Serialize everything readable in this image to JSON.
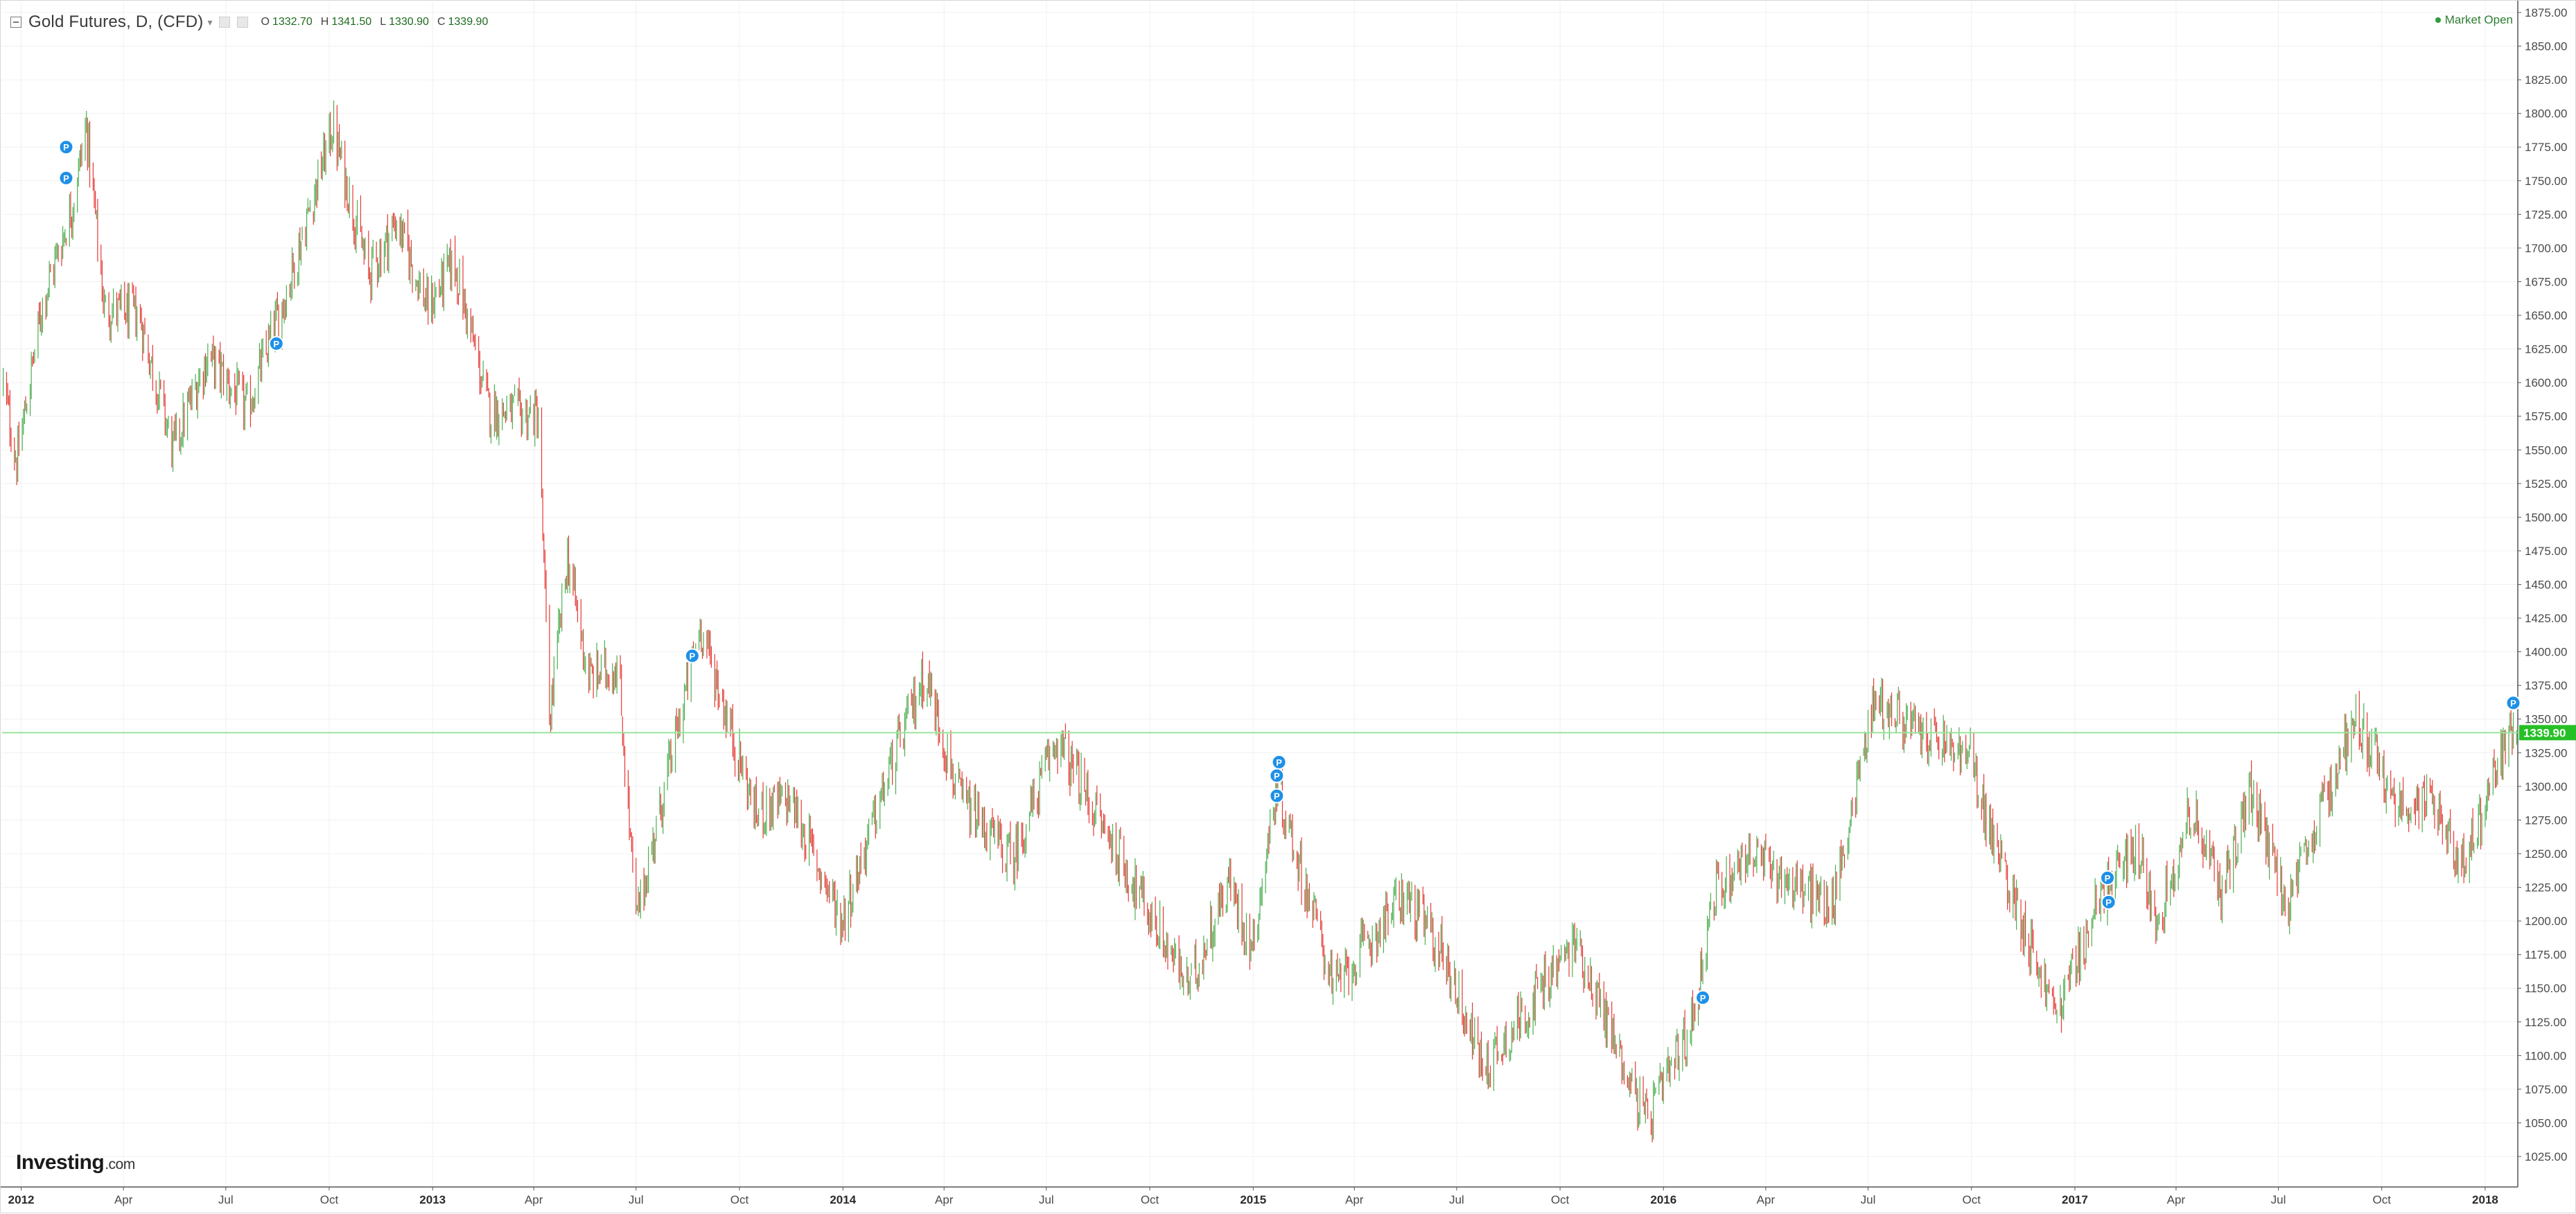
{
  "header": {
    "title": "Gold Futures, D, (CFD)",
    "caret": "▾",
    "ohlc": [
      {
        "key": "O",
        "value": "1332.70"
      },
      {
        "key": "H",
        "value": "1341.50"
      },
      {
        "key": "L",
        "value": "1330.90"
      },
      {
        "key": "C",
        "value": "1339.90"
      }
    ]
  },
  "market_status": "Market Open",
  "logo": {
    "brand": "Investing",
    "domain": ".com"
  },
  "last_price_label": "1339.90",
  "colors": {
    "up": "#4caf50",
    "down": "#e53935",
    "last_price_line": "#9be39b",
    "last_price_badge": "#26c026",
    "marker": "#1e90e8"
  },
  "marker_label": "P",
  "chart_data": {
    "type": "candlestick",
    "title": "Gold Futures, D, (CFD)",
    "xlabel": "",
    "ylabel": "",
    "ylim": [
      1000,
      1875
    ],
    "y_ticks": [
      1025,
      1050,
      1075,
      1100,
      1125,
      1150,
      1175,
      1200,
      1225,
      1250,
      1275,
      1300,
      1325,
      1350,
      1375,
      1400,
      1425,
      1450,
      1475,
      1500,
      1525,
      1550,
      1575,
      1600,
      1625,
      1650,
      1675,
      1700,
      1725,
      1750,
      1775,
      1800,
      1825,
      1850,
      1875
    ],
    "y_tick_labels": [
      "1025.00",
      "1050.00",
      "1075.00",
      "1100.00",
      "1125.00",
      "1150.00",
      "1175.00",
      "1200.00",
      "1225.00",
      "1250.00",
      "1275.00",
      "1300.00",
      "1325.00",
      "1350.00",
      "1375.00",
      "1400.00",
      "1425.00",
      "1450.00",
      "1475.00",
      "1500.00",
      "1525.00",
      "1550.00",
      "1575.00",
      "1600.00",
      "1625.00",
      "1650.00",
      "1675.00",
      "1700.00",
      "1725.00",
      "1750.00",
      "1775.00",
      "1800.00",
      "1825.00",
      "1850.00",
      "1875.00"
    ],
    "x_range": [
      "2011-12-15",
      "2018-01-30"
    ],
    "x_ticks": [
      {
        "date": "2012-01-01",
        "label": "2012",
        "year": true
      },
      {
        "date": "2012-04-01",
        "label": "Apr",
        "year": false
      },
      {
        "date": "2012-07-01",
        "label": "Jul",
        "year": false
      },
      {
        "date": "2012-10-01",
        "label": "Oct",
        "year": false
      },
      {
        "date": "2013-01-01",
        "label": "2013",
        "year": true
      },
      {
        "date": "2013-04-01",
        "label": "Apr",
        "year": false
      },
      {
        "date": "2013-07-01",
        "label": "Jul",
        "year": false
      },
      {
        "date": "2013-10-01",
        "label": "Oct",
        "year": false
      },
      {
        "date": "2014-01-01",
        "label": "2014",
        "year": true
      },
      {
        "date": "2014-04-01",
        "label": "Apr",
        "year": false
      },
      {
        "date": "2014-07-01",
        "label": "Jul",
        "year": false
      },
      {
        "date": "2014-10-01",
        "label": "Oct",
        "year": false
      },
      {
        "date": "2015-01-01",
        "label": "2015",
        "year": true
      },
      {
        "date": "2015-04-01",
        "label": "Apr",
        "year": false
      },
      {
        "date": "2015-07-01",
        "label": "Jul",
        "year": false
      },
      {
        "date": "2015-10-01",
        "label": "Oct",
        "year": false
      },
      {
        "date": "2016-01-01",
        "label": "2016",
        "year": true
      },
      {
        "date": "2016-04-01",
        "label": "Apr",
        "year": false
      },
      {
        "date": "2016-07-01",
        "label": "Jul",
        "year": false
      },
      {
        "date": "2016-10-01",
        "label": "Oct",
        "year": false
      },
      {
        "date": "2017-01-01",
        "label": "2017",
        "year": true
      },
      {
        "date": "2017-04-01",
        "label": "Apr",
        "year": false
      },
      {
        "date": "2017-07-01",
        "label": "Jul",
        "year": false
      },
      {
        "date": "2017-10-01",
        "label": "Oct",
        "year": false
      },
      {
        "date": "2018-01-01",
        "label": "2018",
        "year": true
      }
    ],
    "grid": true,
    "last_price": 1339.9,
    "series": [
      {
        "name": "",
        "close_path": [
          {
            "date": "2011-12-16",
            "close": 1600
          },
          {
            "date": "2011-12-28",
            "close": 1540
          },
          {
            "date": "2012-01-20",
            "close": 1660
          },
          {
            "date": "2012-02-15",
            "close": 1730
          },
          {
            "date": "2012-02-28",
            "close": 1790
          },
          {
            "date": "2012-03-15",
            "close": 1655
          },
          {
            "date": "2012-04-15",
            "close": 1650
          },
          {
            "date": "2012-05-15",
            "close": 1550
          },
          {
            "date": "2012-06-15",
            "close": 1620
          },
          {
            "date": "2012-07-20",
            "close": 1580
          },
          {
            "date": "2012-08-25",
            "close": 1670
          },
          {
            "date": "2012-10-04",
            "close": 1790
          },
          {
            "date": "2012-11-05",
            "close": 1680
          },
          {
            "date": "2012-11-30",
            "close": 1720
          },
          {
            "date": "2012-12-28",
            "close": 1655
          },
          {
            "date": "2013-01-20",
            "close": 1690
          },
          {
            "date": "2013-02-20",
            "close": 1580
          },
          {
            "date": "2013-04-05",
            "close": 1575
          },
          {
            "date": "2013-04-15",
            "close": 1350
          },
          {
            "date": "2013-05-01",
            "close": 1470
          },
          {
            "date": "2013-05-20",
            "close": 1380
          },
          {
            "date": "2013-06-15",
            "close": 1390
          },
          {
            "date": "2013-07-01",
            "close": 1200
          },
          {
            "date": "2013-08-27",
            "close": 1420
          },
          {
            "date": "2013-10-15",
            "close": 1280
          },
          {
            "date": "2013-11-15",
            "close": 1290
          },
          {
            "date": "2013-12-31",
            "close": 1200
          },
          {
            "date": "2014-02-15",
            "close": 1320
          },
          {
            "date": "2014-03-15",
            "close": 1385
          },
          {
            "date": "2014-04-15",
            "close": 1290
          },
          {
            "date": "2014-06-01",
            "close": 1245
          },
          {
            "date": "2014-07-10",
            "close": 1335
          },
          {
            "date": "2014-09-15",
            "close": 1230
          },
          {
            "date": "2014-11-05",
            "close": 1150
          },
          {
            "date": "2014-12-10",
            "close": 1230
          },
          {
            "date": "2014-12-31",
            "close": 1180
          },
          {
            "date": "2015-01-22",
            "close": 1300
          },
          {
            "date": "2015-03-15",
            "close": 1150
          },
          {
            "date": "2015-05-15",
            "close": 1220
          },
          {
            "date": "2015-06-20",
            "close": 1175
          },
          {
            "date": "2015-07-25",
            "close": 1090
          },
          {
            "date": "2015-10-15",
            "close": 1185
          },
          {
            "date": "2015-12-17",
            "close": 1050
          },
          {
            "date": "2016-01-25",
            "close": 1120
          },
          {
            "date": "2016-02-15",
            "close": 1220
          },
          {
            "date": "2016-03-15",
            "close": 1250
          },
          {
            "date": "2016-05-30",
            "close": 1210
          },
          {
            "date": "2016-07-06",
            "close": 1365
          },
          {
            "date": "2016-08-15",
            "close": 1340
          },
          {
            "date": "2016-09-30",
            "close": 1320
          },
          {
            "date": "2016-10-20",
            "close": 1260
          },
          {
            "date": "2016-12-15",
            "close": 1130
          },
          {
            "date": "2017-01-25",
            "close": 1220
          },
          {
            "date": "2017-02-25",
            "close": 1255
          },
          {
            "date": "2017-03-15",
            "close": 1200
          },
          {
            "date": "2017-04-15",
            "close": 1285
          },
          {
            "date": "2017-05-10",
            "close": 1220
          },
          {
            "date": "2017-06-06",
            "close": 1295
          },
          {
            "date": "2017-07-10",
            "close": 1210
          },
          {
            "date": "2017-09-08",
            "close": 1355
          },
          {
            "date": "2017-10-10",
            "close": 1290
          },
          {
            "date": "2017-11-20",
            "close": 1285
          },
          {
            "date": "2017-12-12",
            "close": 1240
          },
          {
            "date": "2018-01-25",
            "close": 1345
          },
          {
            "date": "2018-01-29",
            "close": 1339.9
          }
        ]
      }
    ],
    "markers": [
      {
        "date": "2012-02-10",
        "price": 1775
      },
      {
        "date": "2012-02-10",
        "price": 1752
      },
      {
        "date": "2012-08-15",
        "price": 1629
      },
      {
        "date": "2013-08-20",
        "price": 1397
      },
      {
        "date": "2015-01-24",
        "price": 1318
      },
      {
        "date": "2015-01-22",
        "price": 1308
      },
      {
        "date": "2015-01-22",
        "price": 1293
      },
      {
        "date": "2016-02-05",
        "price": 1143
      },
      {
        "date": "2017-01-30",
        "price": 1232
      },
      {
        "date": "2017-01-31",
        "price": 1214
      },
      {
        "date": "2018-01-26",
        "price": 1362
      }
    ]
  }
}
